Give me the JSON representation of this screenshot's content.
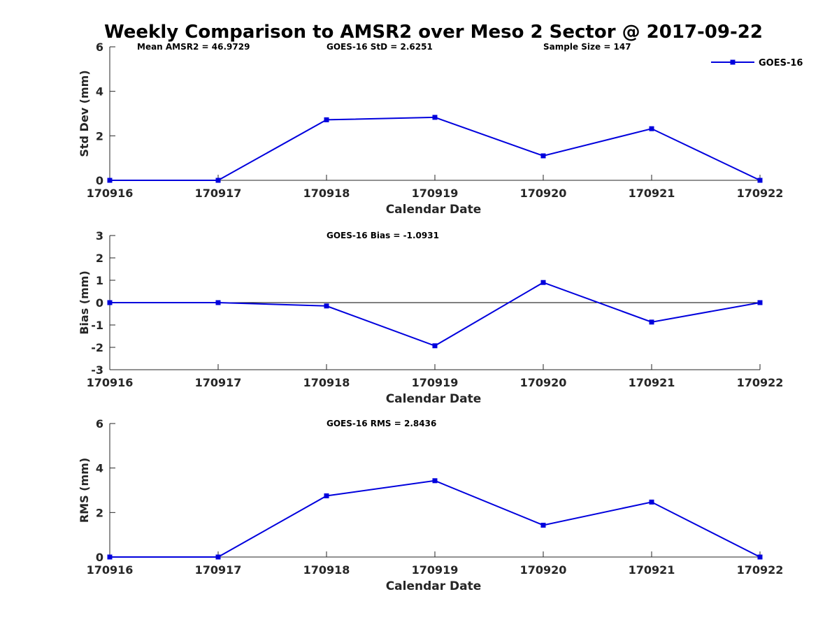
{
  "figure": {
    "title": "Weekly Comparison to AMSR2 over Meso 2 Sector @ 2017-09-22",
    "series_color": "#0000dd",
    "axis_color": "#262626",
    "zero_line_color": "#000000"
  },
  "chart_data": [
    {
      "type": "line",
      "title": "",
      "xlabel": "Calendar Date",
      "ylabel": "Std Dev (mm)",
      "categories": [
        "170916",
        "170917",
        "170918",
        "170919",
        "170920",
        "170921",
        "170922"
      ],
      "ylim": [
        0,
        6
      ],
      "yticks": [
        "0",
        "2",
        "4",
        "6"
      ],
      "series": [
        {
          "name": "GOES-16",
          "values": [
            0,
            0,
            2.72,
            2.83,
            1.1,
            2.32,
            0
          ]
        }
      ],
      "annotations": [
        "Mean AMSR2 = 46.9729",
        "GOES-16 StD = 2.6251",
        "Sample Size = 147"
      ],
      "legend": {
        "entries": [
          "GOES-16"
        ],
        "placement": "top-right"
      },
      "grid": false,
      "zero_line": false
    },
    {
      "type": "line",
      "title": "",
      "xlabel": "Calendar Date",
      "ylabel": "Bias (mm)",
      "categories": [
        "170916",
        "170917",
        "170918",
        "170919",
        "170920",
        "170921",
        "170922"
      ],
      "ylim": [
        -3,
        3
      ],
      "yticks": [
        "-3",
        "-2",
        "-1",
        "0",
        "1",
        "2",
        "3"
      ],
      "series": [
        {
          "values": [
            0,
            0,
            -0.15,
            -1.93,
            0.9,
            -0.87,
            0
          ]
        }
      ],
      "annotations": [
        "GOES-16 Bias  = -1.0931"
      ],
      "grid": false,
      "zero_line": true
    },
    {
      "type": "line",
      "title": "",
      "xlabel": "Calendar Date",
      "ylabel": "RMS (mm)",
      "categories": [
        "170916",
        "170917",
        "170918",
        "170919",
        "170920",
        "170921",
        "170922"
      ],
      "ylim": [
        0,
        6
      ],
      "yticks": [
        "0",
        "2",
        "4",
        "6"
      ],
      "series": [
        {
          "values": [
            0,
            0,
            2.75,
            3.43,
            1.43,
            2.47,
            0
          ]
        }
      ],
      "annotations": [
        "GOES-16 RMS = 2.8436"
      ],
      "grid": false,
      "zero_line": false
    }
  ]
}
